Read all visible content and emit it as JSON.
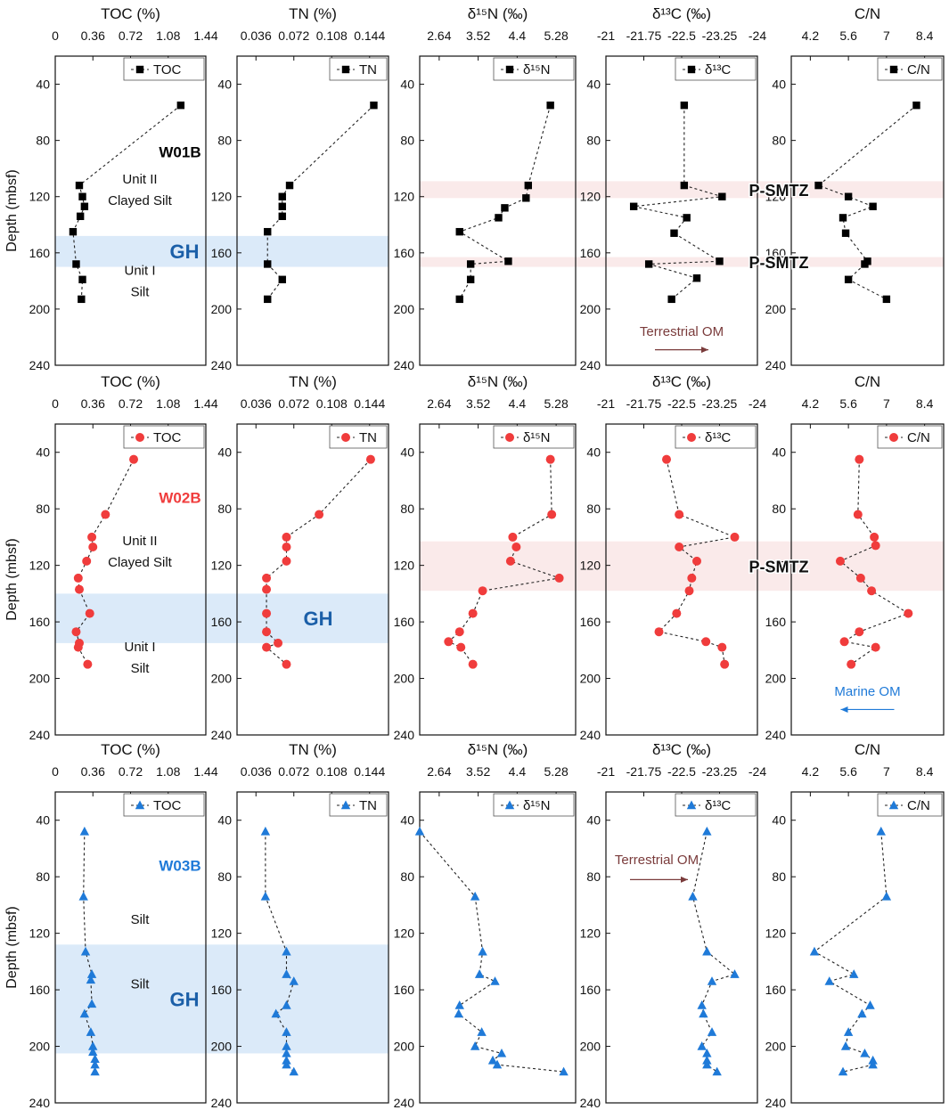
{
  "chart_data": {
    "type": "scatter",
    "description_note": "Depth profiles of sediment geochemistry for three cores; each panel plots depth (y, reversed) against a proxy (x, top axis).",
    "y_axis": {
      "label": "Depth (mbsf)",
      "range": [
        20,
        240
      ],
      "ticks": [
        40,
        80,
        120,
        160,
        200,
        240
      ],
      "reversed": true
    },
    "columns": [
      {
        "key": "toc",
        "title": "TOC (%)",
        "legend": "TOC",
        "range": [
          0,
          1.44
        ],
        "ticks": [
          0,
          0.36,
          0.72,
          1.08,
          1.44
        ],
        "tick_labels": [
          "0",
          "0.36",
          "0.72",
          "1.08",
          "1.44"
        ]
      },
      {
        "key": "tn",
        "title": "TN (%)",
        "legend": "TN",
        "range": [
          0.018,
          0.162
        ],
        "ticks": [
          0.036,
          0.072,
          0.108,
          0.144
        ],
        "tick_labels": [
          "0.036",
          "0.072",
          "0.108",
          "0.144"
        ]
      },
      {
        "key": "d15n",
        "title": "δ¹⁵N (‰)",
        "legend": "δ¹⁵N",
        "range": [
          2.2,
          5.72
        ],
        "ticks": [
          2.64,
          3.52,
          4.4,
          5.28
        ],
        "tick_labels": [
          "2.64",
          "3.52",
          "4.4",
          "5.28"
        ]
      },
      {
        "key": "d13c",
        "title": "δ¹³C (‰)",
        "legend": "δ¹³C",
        "range": [
          -21,
          -24
        ],
        "ticks": [
          -21,
          -21.75,
          -22.5,
          -23.25,
          -24
        ],
        "tick_labels": [
          "-21",
          "-21.75",
          "-22.5",
          "-23.25",
          "-24"
        ]
      },
      {
        "key": "cn",
        "title": "C/N",
        "legend": "C/N",
        "range": [
          3.5,
          9.1
        ],
        "ticks": [
          4.2,
          5.6,
          7,
          8.4
        ],
        "tick_labels": [
          "4.2",
          "5.6",
          "7",
          "8.4"
        ]
      }
    ],
    "cores": [
      {
        "name": "W01B",
        "color": "#000000",
        "marker": "square",
        "gh_zone": {
          "label": "GH",
          "depth_range": [
            148,
            170
          ]
        },
        "smtz_zones": [
          {
            "label": "P-SMTZ",
            "depth_range": [
              109,
              121
            ]
          },
          {
            "label": "P-SMTZ",
            "depth_range": [
              163,
              170
            ]
          }
        ],
        "units": [
          {
            "text": [
              "Unit II",
              "Clayed Silt"
            ],
            "depth": 115
          },
          {
            "text": [
              "Unit I",
              "Silt"
            ],
            "depth": 180
          }
        ],
        "annotation": {
          "text": "Terrestrial OM",
          "column": "d13c",
          "depth": 216,
          "arrow_depth": 229,
          "arrow": "right",
          "color": "#7a3b3b"
        },
        "series": {
          "toc": {
            "x": [
              1.2,
              0.23,
              0.26,
              0.28,
              0.24,
              0.17,
              0.2,
              0.26,
              0.25
            ],
            "y": [
              55,
              112,
              120,
              127,
              134,
              145,
              168,
              179,
              193
            ]
          },
          "tn": {
            "x": [
              0.148,
              0.068,
              0.061,
              0.061,
              0.061,
              0.047,
              0.047,
              0.061,
              0.047
            ],
            "y": [
              55,
              112,
              120,
              127,
              134,
              145,
              168,
              179,
              193
            ]
          },
          "d15n": {
            "x": [
              5.15,
              4.65,
              4.6,
              4.12,
              3.98,
              3.1,
              4.2,
              3.35,
              3.35,
              3.1
            ],
            "y": [
              55,
              112,
              121,
              128,
              135,
              145,
              166,
              168,
              179,
              193
            ]
          },
          "d13c": {
            "x": [
              -22.55,
              -22.55,
              -23.3,
              -21.55,
              -22.6,
              -22.35,
              -23.25,
              -21.85,
              -22.8,
              -22.3
            ],
            "y": [
              55,
              112,
              120,
              127,
              135,
              146,
              166,
              168,
              178,
              193
            ]
          },
          "cn": {
            "x": [
              8.1,
              4.5,
              5.6,
              6.5,
              5.4,
              5.5,
              6.3,
              6.2,
              5.6,
              7.0
            ],
            "y": [
              55,
              112,
              120,
              127,
              135,
              146,
              166,
              168,
              179,
              193
            ]
          }
        }
      },
      {
        "name": "W02B",
        "color": "#f03c3c",
        "marker": "circle",
        "gh_zone": {
          "label": "GH",
          "depth_range": [
            140,
            175
          ]
        },
        "smtz_zones": [
          {
            "label": "P-SMTZ",
            "depth_range": [
              103,
              138
            ]
          }
        ],
        "units": [
          {
            "text": [
              "Unit II",
              "Clayed Silt"
            ],
            "depth": 110
          },
          {
            "text": [
              "Unit I",
              "Silt"
            ],
            "depth": 185
          }
        ],
        "annotation": {
          "text": "Marine OM",
          "column": "cn",
          "depth": 209,
          "arrow_depth": 222,
          "arrow": "left",
          "color": "#1f7ad8"
        },
        "series": {
          "toc": {
            "x": [
              0.75,
              0.48,
              0.35,
              0.36,
              0.3,
              0.22,
              0.23,
              0.33,
              0.2,
              0.23,
              0.22,
              0.31
            ],
            "y": [
              45,
              84,
              100,
              107,
              117,
              129,
              137,
              154,
              167,
              175,
              178,
              190
            ]
          },
          "tn": {
            "x": [
              0.145,
              0.096,
              0.065,
              0.065,
              0.065,
              0.046,
              0.046,
              0.046,
              0.046,
              0.057,
              0.046,
              0.065
            ],
            "y": [
              45,
              84,
              100,
              107,
              117,
              129,
              137,
              154,
              167,
              175,
              178,
              190
            ]
          },
          "d15n": {
            "x": [
              5.15,
              5.18,
              4.3,
              4.38,
              4.25,
              5.35,
              3.62,
              3.4,
              3.1,
              2.85,
              3.13,
              3.4
            ],
            "y": [
              45,
              84,
              100,
              107,
              117,
              129,
              138,
              154,
              167,
              174,
              178,
              190
            ]
          },
          "d13c": {
            "x": [
              -22.2,
              -22.45,
              -23.55,
              -22.45,
              -22.8,
              -22.7,
              -22.65,
              -22.4,
              -22.05,
              -22.98,
              -23.3,
              -23.35
            ],
            "y": [
              45,
              84,
              100,
              107,
              117,
              129,
              138,
              154,
              167,
              174,
              178,
              190
            ]
          },
          "cn": {
            "x": [
              6.0,
              5.95,
              6.55,
              6.6,
              5.3,
              6.05,
              6.45,
              7.8,
              6.0,
              5.45,
              6.6,
              5.7
            ],
            "y": [
              45,
              84,
              100,
              106,
              117,
              129,
              138,
              154,
              167,
              174,
              178,
              190
            ]
          }
        }
      },
      {
        "name": "W03B",
        "color": "#1f7ad8",
        "marker": "triangle",
        "gh_zone": {
          "label": "GH",
          "depth_range": [
            128,
            205
          ]
        },
        "smtz_zones": [],
        "units": [
          {
            "text": [
              "Silt"
            ],
            "depth": 110
          },
          {
            "text": [
              "Silt"
            ],
            "depth": 156
          }
        ],
        "annotation": {
          "text": "Terrestrial OM",
          "column": "d13c",
          "depth": 68,
          "arrow_depth": 82,
          "arrow": "right",
          "color": "#7a3b3b"
        },
        "series": {
          "toc": {
            "x": [
              0.28,
              0.27,
              0.29,
              0.35,
              0.34,
              0.35,
              0.28,
              0.34,
              0.36,
              0.36,
              0.38,
              0.38,
              0.38
            ],
            "y": [
              48,
              94,
              133,
              149,
              153,
              170,
              177,
              190,
              200,
              204,
              209,
              213,
              218
            ]
          },
          "tn": {
            "x": [
              0.045,
              0.045,
              0.065,
              0.065,
              0.072,
              0.065,
              0.055,
              0.065,
              0.065,
              0.065,
              0.065,
              0.065,
              0.072
            ],
            "y": [
              48,
              94,
              133,
              149,
              154,
              171,
              177,
              190,
              200,
              205,
              210,
              213,
              218
            ]
          },
          "d15n": {
            "x": [
              2.2,
              3.45,
              3.62,
              3.55,
              3.9,
              3.1,
              3.08,
              3.6,
              3.45,
              4.05,
              3.85,
              3.95,
              5.45
            ],
            "y": [
              48,
              94,
              133,
              149,
              154,
              171,
              177,
              190,
              200,
              205,
              210,
              213,
              218
            ]
          },
          "d13c": {
            "x": [
              -23.0,
              -22.72,
              -23.0,
              -23.55,
              -23.1,
              -22.9,
              -22.93,
              -23.1,
              -22.9,
              -23.0,
              -23.0,
              -23.0,
              -23.2
            ],
            "y": [
              48,
              94,
              133,
              149,
              154,
              171,
              177,
              190,
              200,
              205,
              210,
              213,
              218
            ]
          },
          "cn": {
            "x": [
              6.8,
              7.0,
              4.35,
              5.8,
              4.9,
              6.4,
              6.1,
              5.6,
              5.5,
              6.2,
              6.5,
              6.5,
              5.4
            ],
            "y": [
              48,
              94,
              133,
              149,
              154,
              171,
              177,
              190,
              200,
              205,
              210,
              213,
              218
            ]
          }
        }
      }
    ]
  }
}
